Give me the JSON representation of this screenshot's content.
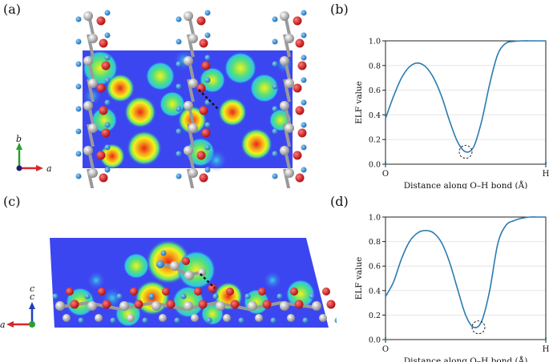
{
  "panels": {
    "a": "(a)",
    "b": "(b)",
    "c": "(c)",
    "d": "(d)"
  },
  "axes_a": {
    "vertical": "b",
    "horizontal": "a"
  },
  "axes_c": {
    "vertical": "c",
    "horizontal": "a"
  },
  "colors": {
    "curve": "#2b7bb0",
    "axis": "#222222",
    "grid": "#e6e6e6",
    "map_bg": "#3c46f0",
    "carbon": "#9a9a9a",
    "oxygen": "#cc1a1a",
    "hydrogen": "#2f8fd6",
    "axis_green": "#2ca02c",
    "axis_red": "#d62728",
    "axis_blue": "#1f3fbf"
  },
  "chart_data": [
    {
      "type": "line",
      "panel": "(b)",
      "ylabel": "ELF value",
      "xlabel": "Distance along O–H bond (Å)",
      "xtick_labels": [
        "O",
        "H"
      ],
      "ylim": [
        0,
        1.0
      ],
      "yticks": [
        "0.0",
        "0.2",
        "0.4",
        "0.6",
        "0.8",
        "1.0"
      ],
      "grid": true,
      "x": [
        0,
        0.05,
        0.1,
        0.15,
        0.2,
        0.25,
        0.3,
        0.35,
        0.4,
        0.45,
        0.5,
        0.55,
        0.6,
        0.65,
        0.7,
        0.75,
        0.8,
        0.85,
        0.9,
        0.95,
        1.0
      ],
      "values": [
        0.37,
        0.55,
        0.7,
        0.79,
        0.82,
        0.79,
        0.7,
        0.55,
        0.35,
        0.18,
        0.1,
        0.14,
        0.35,
        0.65,
        0.89,
        0.98,
        0.995,
        1.0,
        1.0,
        1.0,
        1.0
      ],
      "minimum_marker": {
        "x": 0.5,
        "y": 0.1
      }
    },
    {
      "type": "line",
      "panel": "(d)",
      "ylabel": "ELF value",
      "xlabel": "Distance along O–H bond (Å)",
      "xtick_labels": [
        "O",
        "H"
      ],
      "ylim": [
        0,
        1.0
      ],
      "yticks": [
        "0.0",
        "0.2",
        "0.4",
        "0.6",
        "0.8",
        "1.0"
      ],
      "grid": true,
      "x": [
        0,
        0.05,
        0.1,
        0.15,
        0.2,
        0.25,
        0.3,
        0.35,
        0.4,
        0.45,
        0.5,
        0.55,
        0.6,
        0.65,
        0.7,
        0.75,
        0.8,
        0.85,
        0.9,
        0.95,
        1.0
      ],
      "values": [
        0.35,
        0.47,
        0.66,
        0.8,
        0.87,
        0.89,
        0.87,
        0.79,
        0.63,
        0.41,
        0.2,
        0.1,
        0.15,
        0.4,
        0.78,
        0.93,
        0.97,
        0.99,
        1.0,
        1.0,
        1.0
      ],
      "minimum_marker": {
        "x": 0.58,
        "y": 0.1
      }
    }
  ]
}
